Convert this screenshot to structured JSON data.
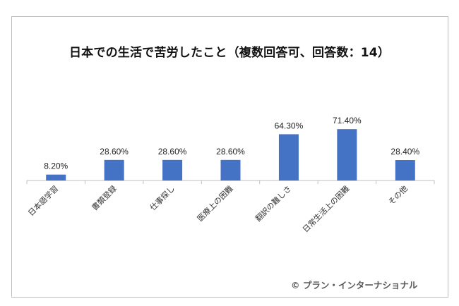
{
  "chart_data": {
    "type": "bar",
    "title": "日本での生活で苦労したこと（複数回答可、回答数：14）",
    "categories": [
      "日本語学習",
      "書類登録",
      "仕事探し",
      "医療上の困難",
      "翻訳の難しさ",
      "日常生活上の困難",
      "その他"
    ],
    "values": [
      8.2,
      28.6,
      28.6,
      28.6,
      64.3,
      71.4,
      28.4
    ],
    "data_labels": [
      "8.20%",
      "28.60%",
      "28.60%",
      "28.60%",
      "64.30%",
      "71.40%",
      "28.40%"
    ],
    "unit": "%",
    "xlabel": "",
    "ylabel": "",
    "ylim": [
      0,
      100
    ],
    "grid": false,
    "legend": "none",
    "bar_color": "#4472c4"
  },
  "credit": "© プラン・インターナショナル"
}
